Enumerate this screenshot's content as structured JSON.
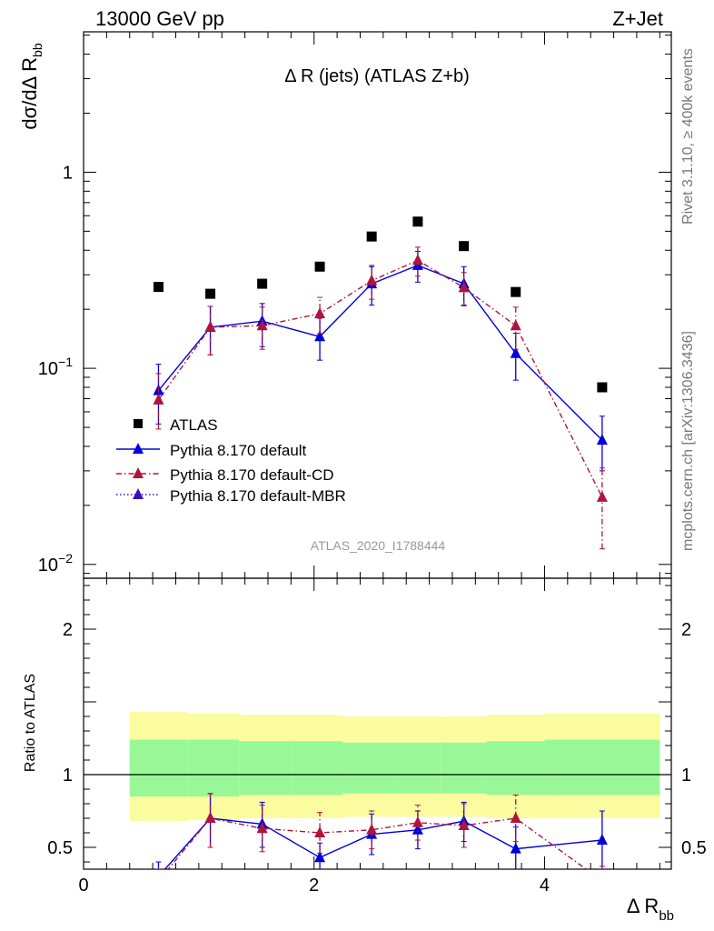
{
  "header": {
    "process": "13000 GeV pp",
    "channel": "Z+Jet",
    "rivet": "Rivet 3.1.10, ≥ 400k events",
    "source": "mcplots.cern.ch [arXiv:1306.3436]",
    "analysis": "ATLAS_2020_I1788444"
  },
  "chart_data": [
    {
      "type": "scatter",
      "title": "Δ R (jets) (ATLAS Z+b)",
      "ylabel": "dσ/dΔ R",
      "ylabel_sub": "bb",
      "yscale": "log",
      "ylim": [
        0.0085,
        5.2
      ],
      "xlim": [
        0,
        5.1
      ],
      "yticks": [
        {
          "value": 1,
          "label": "1"
        },
        {
          "value": 0.1,
          "label": "10",
          "exp": "−1"
        },
        {
          "value": 0.01,
          "label": "10",
          "exp": "−2"
        }
      ],
      "legend_position": "lower-left",
      "x": [
        0.65,
        1.1,
        1.55,
        2.05,
        2.5,
        2.9,
        3.3,
        3.75,
        4.5
      ],
      "xerr": [
        0.25,
        0.2,
        0.25,
        0.25,
        0.2,
        0.2,
        0.2,
        0.25,
        0.5
      ],
      "series": [
        {
          "name": "ATLAS",
          "color": "#000000",
          "marker": "square",
          "line": "none",
          "values": [
            0.26,
            0.24,
            0.27,
            0.33,
            0.47,
            0.56,
            0.42,
            0.245,
            0.08
          ]
        },
        {
          "name": "Pythia 8.170 default",
          "color": "#0000dd",
          "marker": "triangle",
          "line": "solid",
          "values": [
            0.077,
            0.162,
            0.174,
            0.145,
            0.27,
            0.335,
            0.27,
            0.119,
            0.043
          ],
          "err_lo": [
            0.025,
            0.045,
            0.045,
            0.035,
            0.06,
            0.06,
            0.06,
            0.032,
            0.013
          ],
          "err_hi": [
            0.028,
            0.045,
            0.04,
            0.035,
            0.06,
            0.06,
            0.06,
            0.032,
            0.014
          ]
        },
        {
          "name": "Pythia 8.170 default-CD",
          "color": "#b0143c",
          "marker": "triangle",
          "line": "dashdot",
          "values": [
            0.069,
            0.162,
            0.165,
            0.19,
            0.28,
            0.355,
            0.258,
            0.165,
            0.022
          ],
          "err_lo": [
            0.02,
            0.045,
            0.04,
            0.04,
            0.055,
            0.06,
            0.05,
            0.04,
            0.01
          ],
          "err_hi": [
            0.025,
            0.045,
            0.04,
            0.04,
            0.055,
            0.06,
            0.05,
            0.04,
            0.009
          ]
        },
        {
          "name": "Pythia 8.170 default-MBR",
          "color": "#3a12b8",
          "marker": "triangle",
          "line": "dotted",
          "values": [],
          "err_lo": [],
          "err_hi": []
        }
      ]
    },
    {
      "type": "scatter",
      "ylabel": "Ratio to ATLAS",
      "xlabel": "Δ R",
      "xlabel_sub": "bb",
      "ylim": [
        0.35,
        2.35
      ],
      "xlim": [
        0,
        5.1
      ],
      "yticks": [
        0.5,
        1,
        2
      ],
      "xticks": [
        0,
        2,
        4
      ],
      "band_edges": [
        0.4,
        0.9,
        1.35,
        1.8,
        2.25,
        2.7,
        3.1,
        3.5,
        4.0,
        5.0
      ],
      "band_outer": [
        [
          0.68,
          1.43
        ],
        [
          0.69,
          1.42
        ],
        [
          0.7,
          1.41
        ],
        [
          0.7,
          1.41
        ],
        [
          0.71,
          1.4
        ],
        [
          0.71,
          1.4
        ],
        [
          0.71,
          1.4
        ],
        [
          0.7,
          1.41
        ],
        [
          0.7,
          1.42
        ]
      ],
      "band_inner": [
        [
          0.85,
          1.24
        ],
        [
          0.85,
          1.24
        ],
        [
          0.86,
          1.23
        ],
        [
          0.86,
          1.23
        ],
        [
          0.87,
          1.22
        ],
        [
          0.87,
          1.22
        ],
        [
          0.87,
          1.22
        ],
        [
          0.86,
          1.23
        ],
        [
          0.86,
          1.24
        ]
      ],
      "band_colors": {
        "outer": "#fbfb9f",
        "inner": "#98f898"
      },
      "series": [
        {
          "name": "Pythia 8.170 default",
          "color": "#0000dd",
          "values": [
            0.3,
            0.7,
            0.66,
            0.43,
            0.59,
            0.62,
            0.68,
            0.49,
            0.55
          ],
          "err_lo": [
            0.1,
            0.2,
            0.16,
            0.1,
            0.14,
            0.13,
            0.14,
            0.15,
            0.2
          ],
          "err_hi": [
            0.1,
            0.17,
            0.15,
            0.1,
            0.14,
            0.13,
            0.13,
            0.15,
            0.2
          ]
        },
        {
          "name": "Pythia 8.170 default-CD",
          "color": "#b0143c",
          "values": [
            0.27,
            0.7,
            0.63,
            0.6,
            0.62,
            0.67,
            0.65,
            0.7,
            0.27
          ],
          "err_lo": [
            0.08,
            0.2,
            0.16,
            0.14,
            0.13,
            0.12,
            0.15,
            0.16,
            0.1
          ],
          "err_hi": [
            0.08,
            0.17,
            0.16,
            0.14,
            0.13,
            0.12,
            0.15,
            0.16,
            0.1
          ]
        }
      ]
    }
  ]
}
